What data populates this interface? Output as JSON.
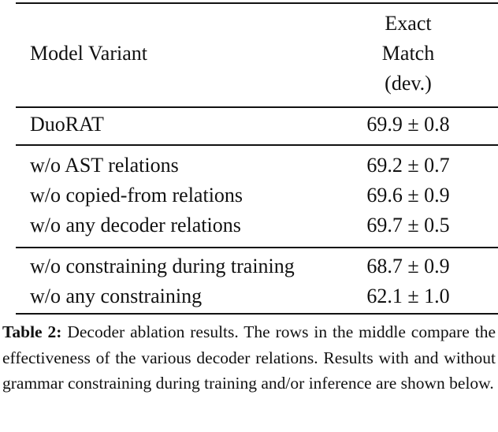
{
  "table": {
    "header": {
      "model_col": "Model Variant",
      "metric_col_lines": [
        "Exact",
        "Match",
        "(dev.)"
      ]
    },
    "groups": [
      {
        "rows": [
          {
            "variant": "DuoRAT",
            "score": "69.9 ± 0.8"
          }
        ]
      },
      {
        "rows": [
          {
            "variant": "w/o AST relations",
            "score": "69.2 ± 0.7"
          },
          {
            "variant": "w/o copied-from relations",
            "score": "69.6 ± 0.9"
          },
          {
            "variant": "w/o any decoder relations",
            "score": "69.7 ± 0.5"
          }
        ]
      },
      {
        "rows": [
          {
            "variant": "w/o constraining during training",
            "score": "68.7 ± 0.9"
          },
          {
            "variant": "w/o any constraining",
            "score": "62.1 ± 1.0"
          }
        ]
      }
    ]
  },
  "caption": {
    "label": "Table 2:",
    "text": "Decoder ablation results. The rows in the middle compare the effectiveness of the various decoder relations. Results with and without grammar constraining during training and/or inference are shown below."
  }
}
